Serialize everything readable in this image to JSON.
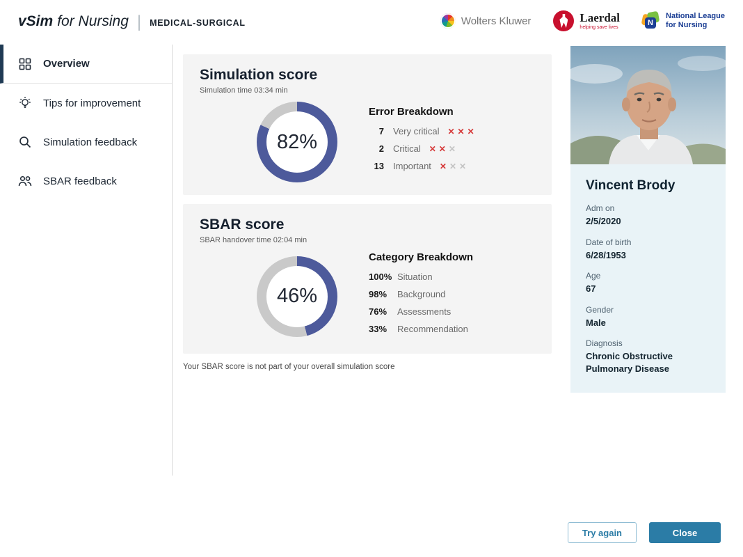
{
  "header": {
    "brand_main": "vSim",
    "brand_secondary": "for Nursing",
    "brand_division": "MEDICAL-SURGICAL",
    "partners": {
      "wolters_kluwer": "Wolters Kluwer",
      "laerdal": "Laerdal",
      "laerdal_tagline": "helping save lives",
      "nln_line1": "National League",
      "nln_line2": "for Nursing",
      "nln_letter": "N"
    }
  },
  "sidebar": {
    "items": [
      {
        "label": "Overview",
        "active": true
      },
      {
        "label": "Tips for improvement",
        "active": false
      },
      {
        "label": "Simulation feedback",
        "active": false
      },
      {
        "label": "SBAR feedback",
        "active": false
      }
    ]
  },
  "chart_data": [
    {
      "type": "donut",
      "title": "Simulation score",
      "subtitle": "Simulation time 03:34 min",
      "percent": 82,
      "percent_label": "82%",
      "ring_color": "#4d5a9b",
      "track_color": "#c9c9c9",
      "breakdown_title": "Error Breakdown",
      "rows": [
        {
          "count": "7",
          "label": "Very critical",
          "marks": [
            "red",
            "red",
            "red"
          ]
        },
        {
          "count": "2",
          "label": "Critical",
          "marks": [
            "red",
            "red",
            "gray"
          ]
        },
        {
          "count": "13",
          "label": "Important",
          "marks": [
            "red",
            "gray",
            "gray"
          ]
        }
      ]
    },
    {
      "type": "donut",
      "title": "SBAR score",
      "subtitle": "SBAR handover time 02:04 min",
      "percent": 46,
      "percent_label": "46%",
      "ring_color": "#4d5a9b",
      "track_color": "#c9c9c9",
      "breakdown_title": "Category Breakdown",
      "rows": [
        {
          "value": "100%",
          "label": "Situation"
        },
        {
          "value": "98%",
          "label": "Background"
        },
        {
          "value": "76%",
          "label": "Assessments"
        },
        {
          "value": "33%",
          "label": "Recommendation"
        }
      ]
    }
  ],
  "footnote": "Your SBAR score is not part of your overall simulation score",
  "patient": {
    "name": "Vincent Brody",
    "fields": [
      {
        "label": "Adm on",
        "value": "2/5/2020"
      },
      {
        "label": "Date of birth",
        "value": "6/28/1953"
      },
      {
        "label": "Age",
        "value": "67"
      },
      {
        "label": "Gender",
        "value": "Male"
      },
      {
        "label": "Diagnosis",
        "value": "Chronic Obstructive Pulmonary Disease"
      }
    ]
  },
  "actions": {
    "try_again": "Try again",
    "close": "Close"
  },
  "colors": {
    "accent_ring": "#4d5a9b",
    "track": "#c9c9c9",
    "primary_button": "#2b7ca6",
    "error_mark": "#d63a3a",
    "muted_mark": "#c4c4c4",
    "panel_bg": "#e9f3f7",
    "card_bg": "#f4f4f4",
    "active_nav_bar": "#1f3a54"
  }
}
